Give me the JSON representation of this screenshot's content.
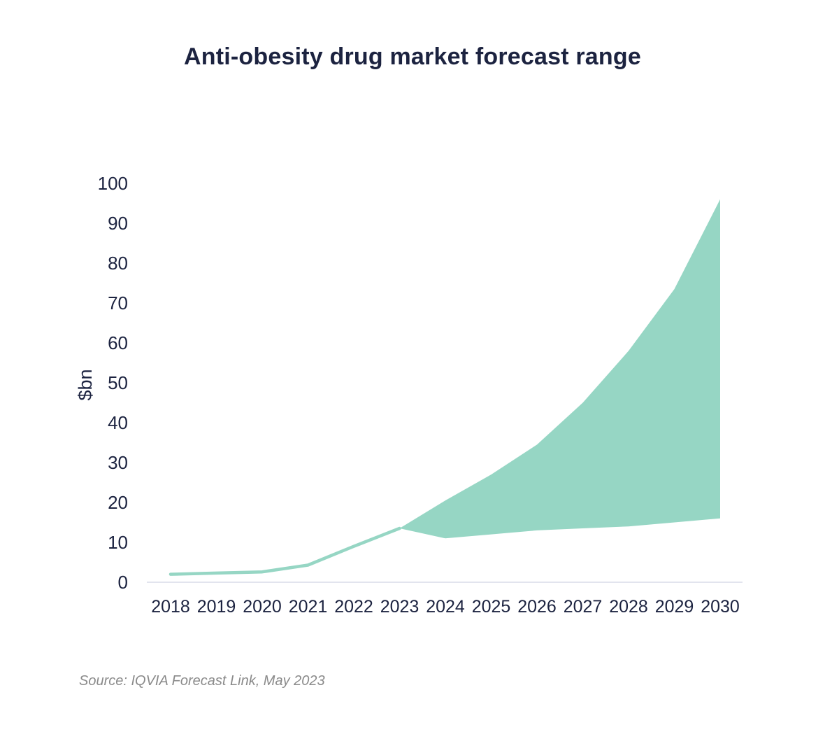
{
  "chart_data": {
    "type": "area",
    "title": "Anti-obesity drug market forecast range",
    "ylabel": "$bn",
    "xlabel": "",
    "x": [
      "2018",
      "2019",
      "2020",
      "2021",
      "2022",
      "2023",
      "2024",
      "2025",
      "2026",
      "2027",
      "2028",
      "2029",
      "2030"
    ],
    "y_ticks": [
      "0",
      "10",
      "20",
      "30",
      "40",
      "50",
      "60",
      "70",
      "80",
      "90",
      "100"
    ],
    "ylim": [
      0,
      100
    ],
    "grid": false,
    "historical": {
      "x": [
        "2018",
        "2019",
        "2020",
        "2021",
        "2022",
        "2023"
      ],
      "values": [
        2,
        2.3,
        2.6,
        4.3,
        9,
        13.5
      ]
    },
    "forecast_range": {
      "x": [
        "2023",
        "2024",
        "2025",
        "2026",
        "2027",
        "2028",
        "2029",
        "2030"
      ],
      "low": [
        13.5,
        11,
        12,
        13,
        13.5,
        14,
        15,
        16
      ],
      "high": [
        13.5,
        20.5,
        27,
        34.5,
        45,
        58,
        73.5,
        96
      ]
    },
    "colors": {
      "series": "#96d6c4",
      "text": "#1c2340",
      "axis": "#d8dbe8"
    }
  },
  "source": "Source: IQVIA Forecast Link, May 2023"
}
